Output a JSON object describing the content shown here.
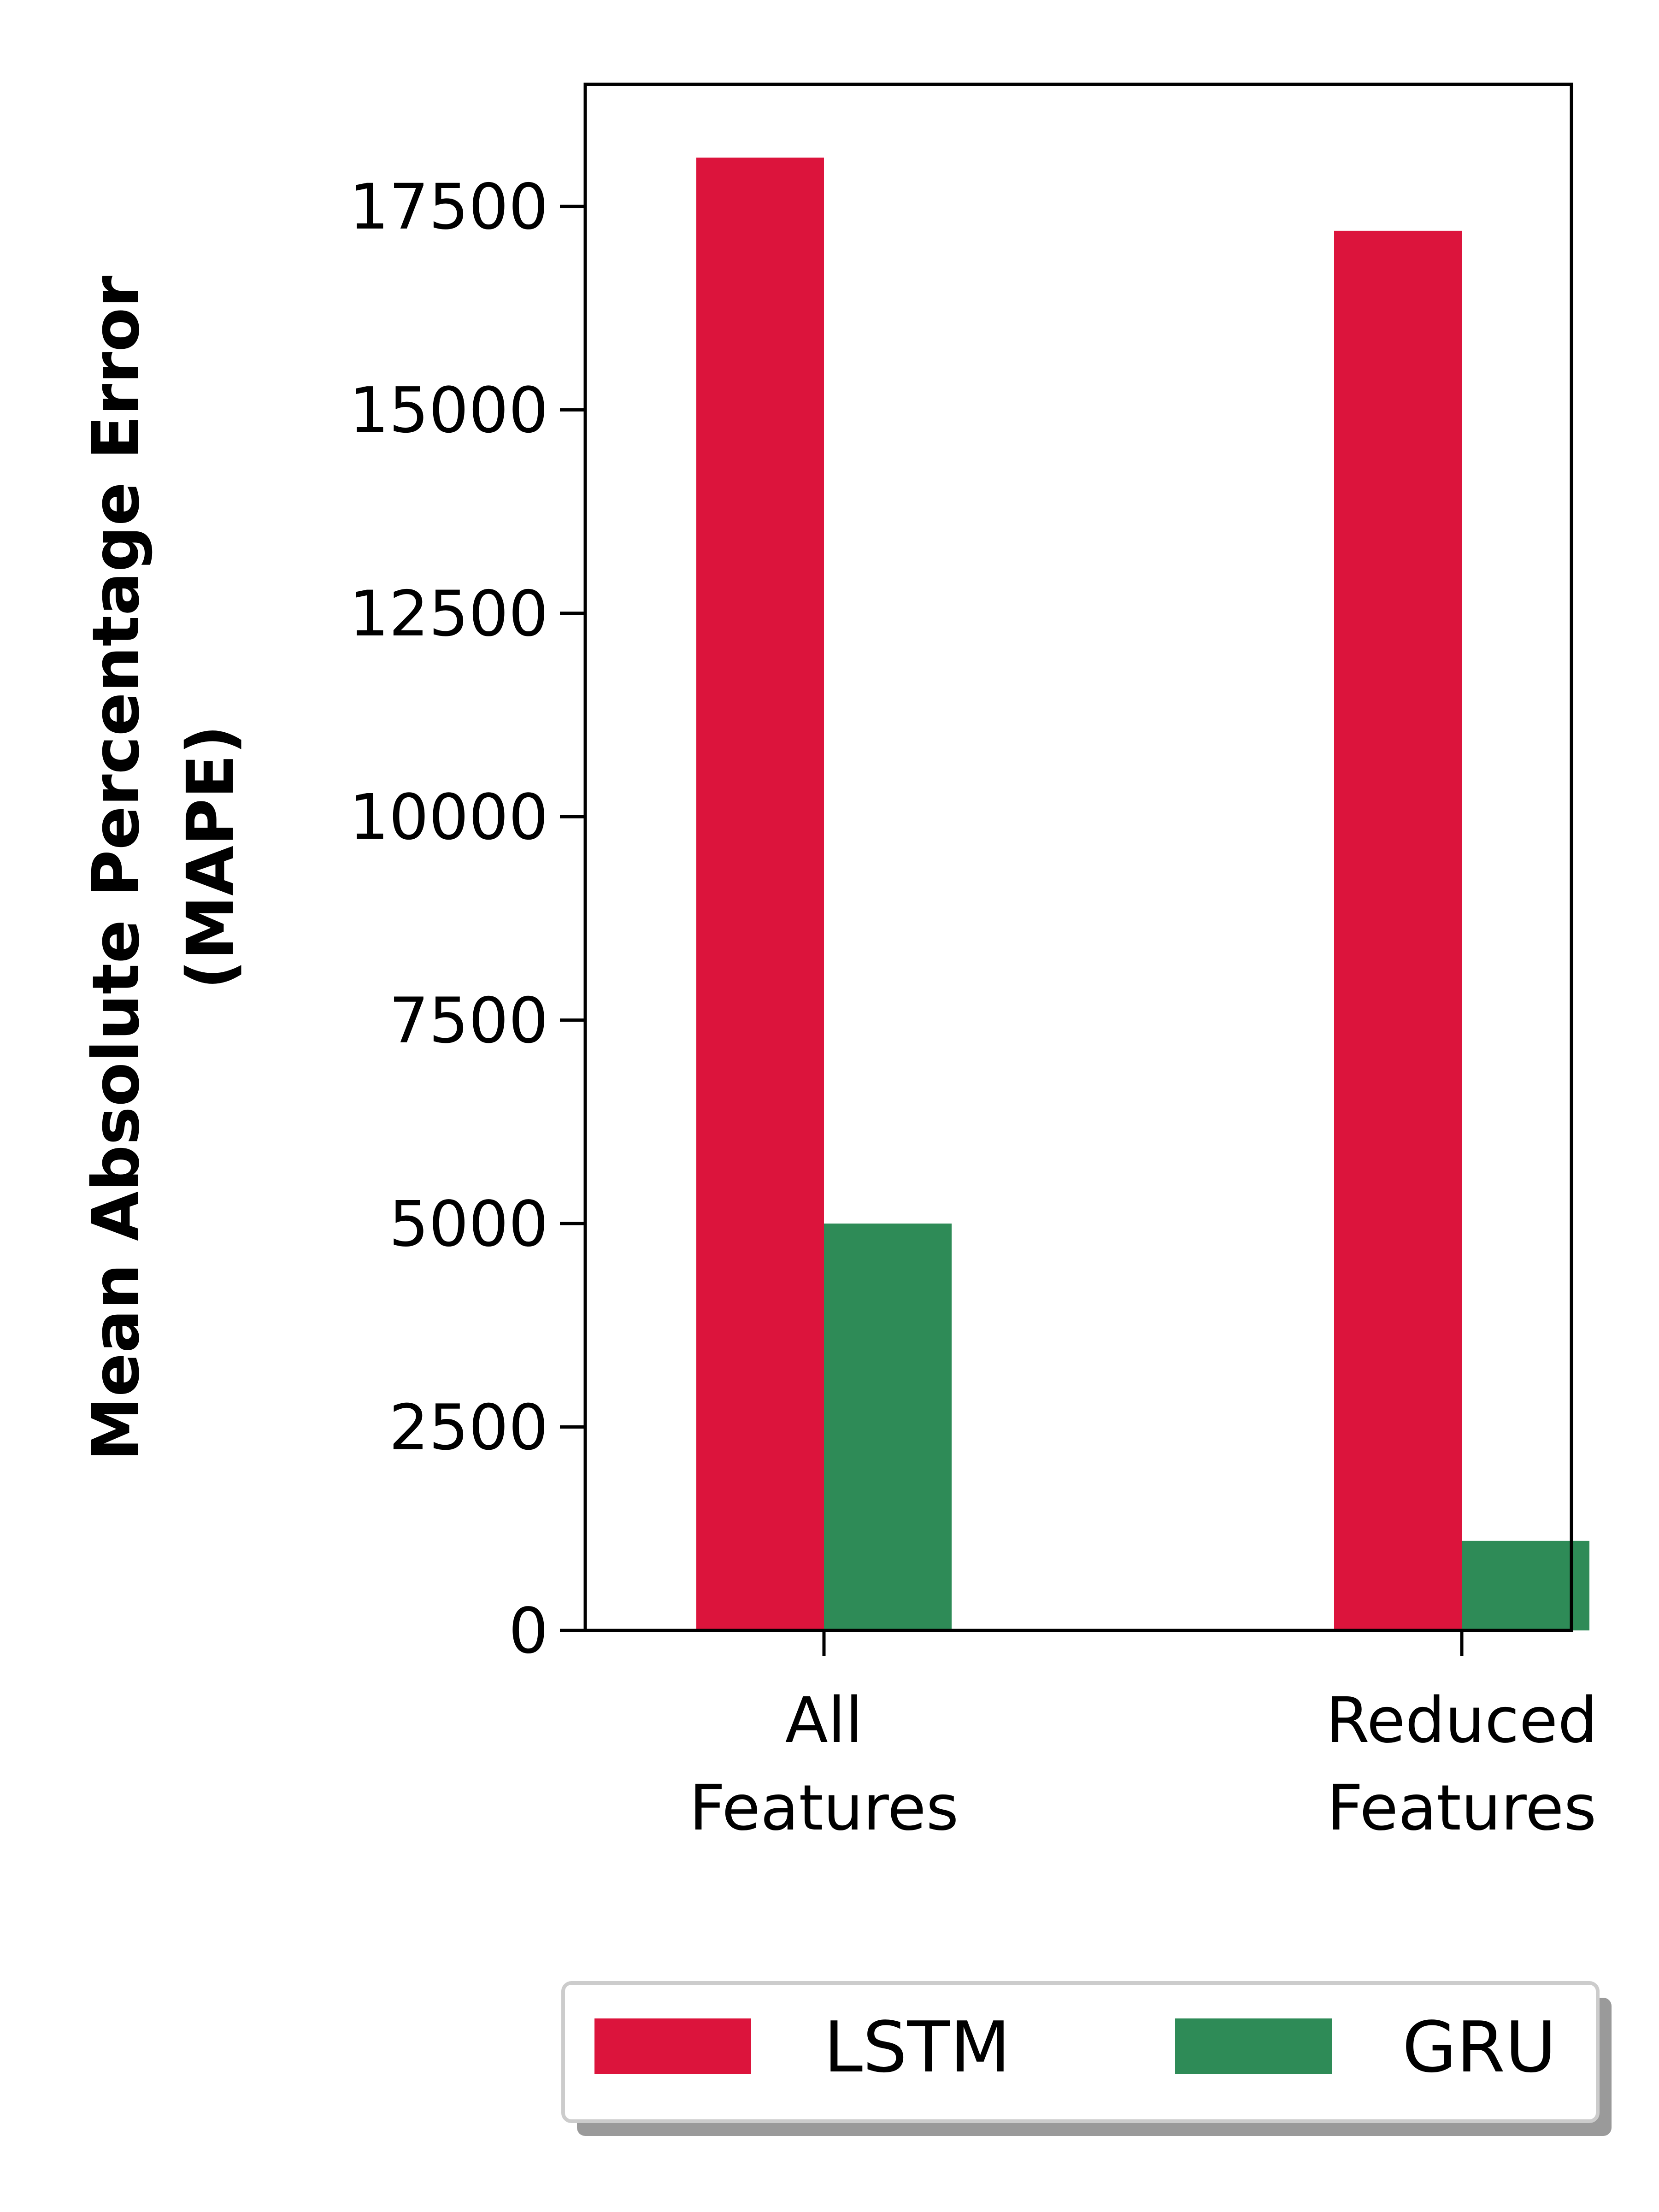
{
  "chart_data": {
    "type": "bar",
    "title": "",
    "xlabel": "",
    "ylabel": "Mean Absolute Percentage Error (MAPE)",
    "ylabel_lines": [
      "Mean Absolute Percentage Error",
      "(MAPE)"
    ],
    "categories": [
      "All Features",
      "Reduced Features"
    ],
    "category_lines": [
      [
        "All",
        "Features"
      ],
      [
        "Reduced",
        "Features"
      ]
    ],
    "series": [
      {
        "name": "LSTM",
        "color": "#dc143c",
        "values": [
          18100,
          17200
        ]
      },
      {
        "name": "GRU",
        "color": "#2e8b57",
        "values": [
          5000,
          1100
        ]
      }
    ],
    "yticks": [
      0,
      2500,
      5000,
      7500,
      10000,
      12500,
      15000,
      17500
    ],
    "ytick_labels": [
      "0",
      "2500",
      "5000",
      "7500",
      "10000",
      "12500",
      "15000",
      "17500"
    ],
    "ylim": [
      0,
      19000
    ],
    "grid": false,
    "legend_position": "bottom-center"
  }
}
